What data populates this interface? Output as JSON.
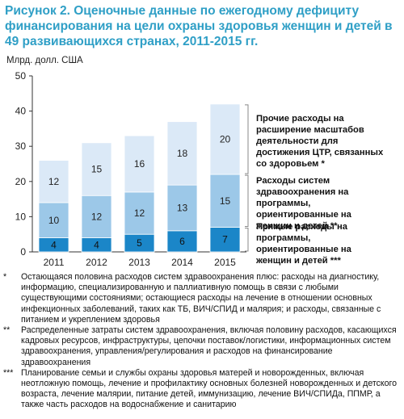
{
  "title": "Рисунок 2. Оценочные данные по ежегодному дефициту финансирования на цели охраны здоровья женщин и детей в 49 развивающихся странах, 2011-2015 гг.",
  "unit_label": "Млрд. долл. США",
  "colors": {
    "title": "#2f9fc6",
    "direct": "#1b86c8",
    "systems": "#9cc8e8",
    "other": "#dbe9f7",
    "bracket": "#888888"
  },
  "legend": [
    {
      "label": "Прочие расходы на расширение масштабов деятельности для достижения ЦТР, связанных со здоровьем *"
    },
    {
      "label": "Расходы систем здравоохранения на программы, ориентированные на женщин и детей **"
    },
    {
      "label": "Прямые расходы на программы, ориентированные на женщин и детей ***"
    }
  ],
  "chart_data": {
    "type": "bar",
    "stacked": true,
    "categories": [
      "2011",
      "2012",
      "2013",
      "2014",
      "2015"
    ],
    "series": [
      {
        "name": "Прямые расходы на программы, ориентированные на женщин и детей ***",
        "values": [
          4,
          4,
          5,
          6,
          7
        ],
        "color": "#1b86c8"
      },
      {
        "name": "Расходы систем здравоохранения на программы, ориентированные на женщин и детей **",
        "values": [
          10,
          12,
          12,
          13,
          15
        ],
        "color": "#9cc8e8"
      },
      {
        "name": "Прочие расходы на расширение масштабов деятельности для достижения ЦТР, связанных со здоровьем *",
        "values": [
          12,
          15,
          16,
          18,
          20
        ],
        "color": "#dbe9f7"
      }
    ],
    "yticks": [
      0,
      10,
      20,
      30,
      40,
      50
    ],
    "ylim": [
      0,
      50
    ],
    "ylabel": "Млрд. долл. США",
    "xlabel": "",
    "grid": false,
    "legend_position": "right"
  },
  "notes": [
    {
      "mark": "*",
      "text": "Остающаяся половина расходов систем здравоохранения плюс: расходы на диагностику, информацию, специализированную и паллиативную помощь в связи с любыми существующими состояниями; остающиеся расходы на лечение в отношении основных инфекционных заболеваний, таких как ТБ, ВИЧ/СПИД и малярия; и расходы, связанные с питанием и укреплением здоровья"
    },
    {
      "mark": "**",
      "text": "Распределенные затраты систем здравоохранения, включая половину расходов, касающихся кадровых ресурсов, инфраструктуры, цепочки поставок/логистики, информационных систем здравоохранения, управления/регулирования и расходов на финансирование здравоохранения"
    },
    {
      "mark": "***",
      "text": "Планирование семьи и службы охраны здоровья матерей и новорожденных, включая неотложную помощь, лечение и профилактику основных болезней новорожденных и детского возраста, лечение малярии, питание детей, иммунизацию, лечение ВИЧ/СПИДа, ППМР, а также часть расходов на водоснабжение и санитарию"
    }
  ]
}
